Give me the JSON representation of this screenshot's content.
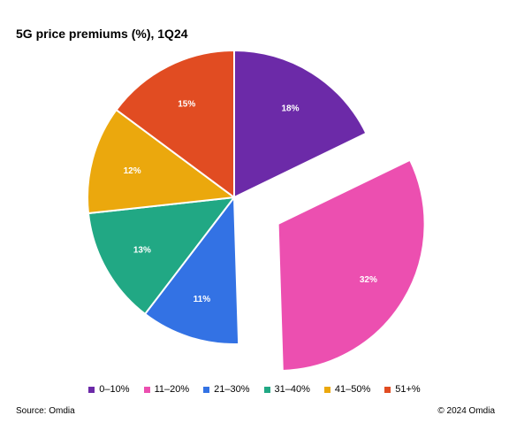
{
  "chart_data": {
    "type": "pie",
    "title": "5G price premiums (%), 1Q24",
    "categories": [
      "0–10%",
      "11–20%",
      "21–30%",
      "31–40%",
      "41–50%",
      "51+%"
    ],
    "values": [
      18,
      32,
      11,
      13,
      12,
      15
    ],
    "labels": [
      "18%",
      "32%",
      "11%",
      "13%",
      "12%",
      "15%"
    ],
    "colors": [
      "#6c2aa8",
      "#ec4fb0",
      "#3372e4",
      "#21a884",
      "#eba80d",
      "#e14c22"
    ],
    "exploded": [
      false,
      true,
      false,
      false,
      false,
      false
    ],
    "legend_position": "bottom"
  },
  "footer": {
    "source": "Source:  Omdia",
    "copyright": "© 2024 Omdia"
  }
}
